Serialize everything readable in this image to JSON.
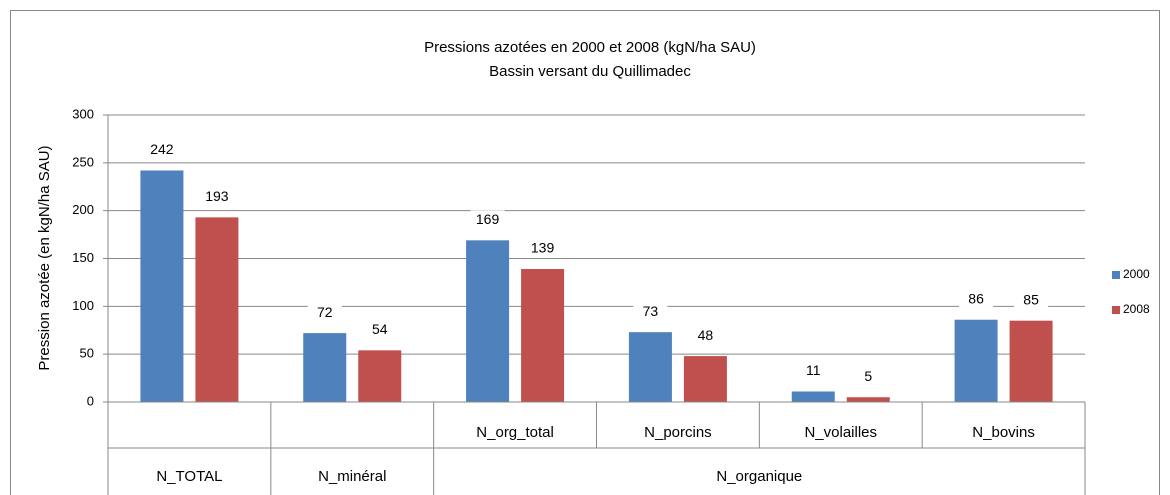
{
  "chart_data": {
    "type": "bar",
    "title": "Pressions azotées en 2000 et 2008 (kgN/ha SAU)",
    "subtitle": "Bassin versant du Quillimadec",
    "y_label": "Pression azotée (en kgN/ha  SAU)",
    "categories": [
      null,
      null,
      "N_org_total",
      "N_porcins",
      "N_volailles",
      "N_bovins"
    ],
    "group_labels": [
      "N_TOTAL",
      "N_minéral",
      "N_organique"
    ],
    "group_sizes": [
      1,
      1,
      4
    ],
    "series": [
      {
        "name": "2000",
        "color": "#4f81bd",
        "values": [
          242,
          72,
          169,
          73,
          11,
          86
        ]
      },
      {
        "name": "2008",
        "color": "#c0504d",
        "values": [
          193,
          54,
          139,
          48,
          5,
          85
        ]
      }
    ],
    "ylim": [
      0,
      300
    ],
    "yticks": [
      0,
      50,
      100,
      150,
      200,
      250,
      300
    ],
    "grid": true,
    "legend": "right"
  }
}
